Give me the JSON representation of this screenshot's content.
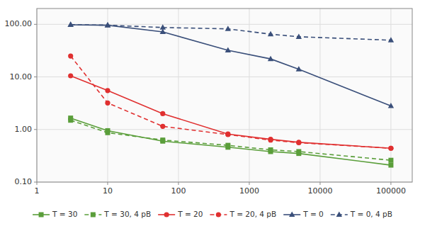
{
  "chart_data": {
    "type": "line",
    "log": true,
    "grid": true,
    "legend": "bottom",
    "xlim": [
      1,
      200000
    ],
    "ylim": [
      0.1,
      200.0
    ],
    "xticks": [
      1,
      10,
      100,
      1000,
      10000,
      100000
    ],
    "yticks": [
      {
        "value": 0.1,
        "label": "0.10"
      },
      {
        "value": 1.0,
        "label": "1.00"
      },
      {
        "value": 10.0,
        "label": "10.00"
      },
      {
        "value": 100.0,
        "label": "100.00"
      }
    ],
    "x": [
      3,
      10,
      60,
      500,
      2000,
      5000,
      100000
    ],
    "series": [
      {
        "name": "T = 30",
        "color": "#5a9e3a",
        "line_style": "solid",
        "marker": "square",
        "values": [
          1.65,
          0.95,
          0.6,
          0.46,
          0.38,
          0.35,
          0.21
        ]
      },
      {
        "name": "T = 30, 4 pB",
        "color": "#5a9e3a",
        "line_style": "dashed",
        "marker": "square",
        "values": [
          1.5,
          0.87,
          0.63,
          0.5,
          0.41,
          0.38,
          0.26
        ]
      },
      {
        "name": "T = 20",
        "color": "#e03030",
        "line_style": "solid",
        "marker": "circle",
        "values": [
          10.5,
          5.5,
          2.0,
          0.82,
          0.65,
          0.57,
          0.44
        ]
      },
      {
        "name": "T = 20, 4 pB",
        "color": "#e03030",
        "line_style": "dashed",
        "marker": "circle",
        "values": [
          25.0,
          3.2,
          1.15,
          0.8,
          0.63,
          0.56,
          0.44
        ]
      },
      {
        "name": "T = 0",
        "color": "#3a4f7a",
        "line_style": "solid",
        "marker": "triangle",
        "values": [
          98.0,
          96.0,
          72.0,
          32.0,
          22.0,
          14.0,
          2.8
        ]
      },
      {
        "name": "T = 0, 4 pB",
        "color": "#3a4f7a",
        "line_style": "dashed",
        "marker": "triangle",
        "values": [
          98.5,
          96.5,
          87.0,
          82.0,
          65.0,
          58.0,
          50.0
        ]
      }
    ]
  }
}
